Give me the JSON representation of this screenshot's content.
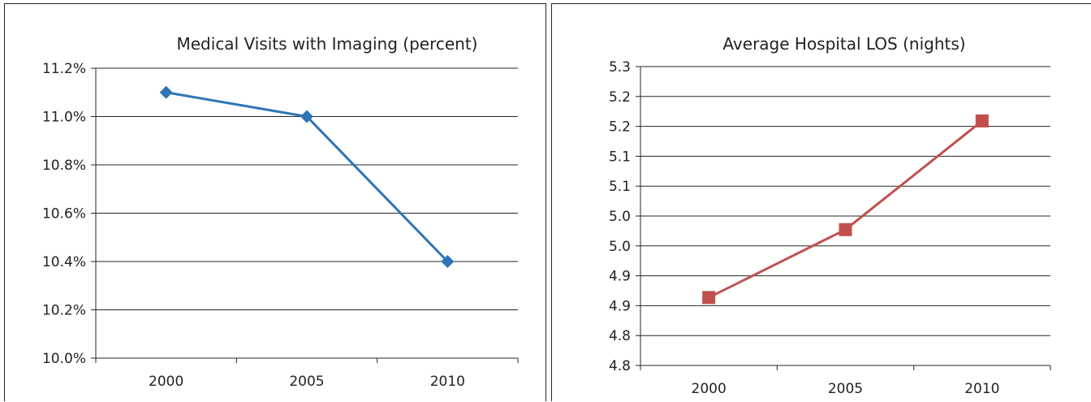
{
  "chart_data": [
    {
      "type": "line",
      "title": "Medical Visits with Imaging (percent)",
      "xlabel": "",
      "ylabel": "",
      "categories": [
        "2000",
        "2005",
        "2010"
      ],
      "series": [
        {
          "values": [
            11.1,
            11.0,
            10.4
          ],
          "color": "#2e75b6",
          "marker": "diamond"
        }
      ],
      "ylim": [
        10.0,
        11.2
      ],
      "y_ticks": [
        "10.0%",
        "10.2%",
        "10.4%",
        "10.6%",
        "10.8%",
        "11.0%",
        "11.2%"
      ],
      "grid": true,
      "legend": "none"
    },
    {
      "type": "line",
      "title": "Average Hospital LOS (nights)",
      "xlabel": "",
      "ylabel": "",
      "categories": [
        "2000",
        "2005",
        "2010"
      ],
      "series": [
        {
          "values": [
            4.875,
            5.0,
            5.2
          ],
          "color": "#c0504d",
          "marker": "square"
        }
      ],
      "ylim": [
        4.75,
        5.3
      ],
      "y_ticks": [
        "4.8",
        "4.8",
        "4.9",
        "4.9",
        "5.0",
        "5.0",
        "5.1",
        "5.1",
        "5.2",
        "5.2",
        "5.3"
      ],
      "grid": true,
      "legend": "none"
    }
  ]
}
